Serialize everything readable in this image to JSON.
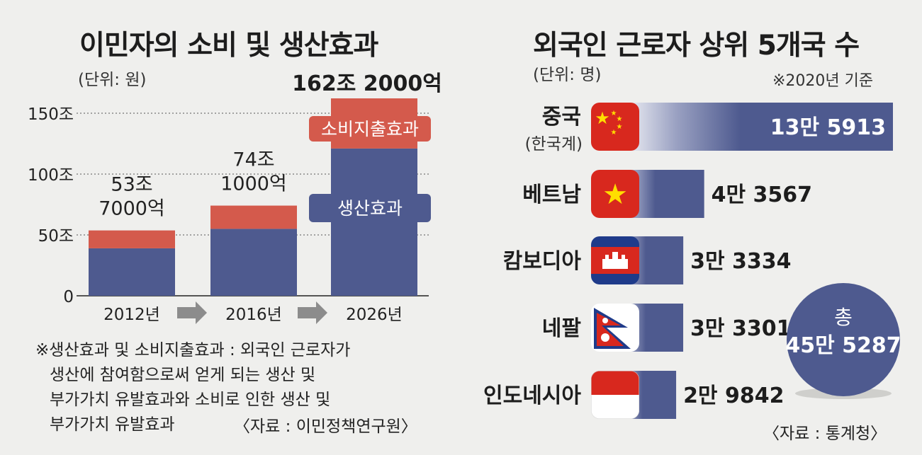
{
  "colors": {
    "background": "#efefed",
    "production": "#4e5a8f",
    "consumption": "#d45a4c",
    "text": "#1d1d1d",
    "arrow": "#8c8c8c"
  },
  "chart_data": [
    {
      "type": "bar",
      "stacked": true,
      "title": "이민자의 소비 및 생산효과",
      "unit": "(단위: 원)",
      "categories": [
        "2012년",
        "2016년",
        "2026년"
      ],
      "series": [
        {
          "name": "생산효과",
          "values": [
            39,
            55,
            121
          ]
        },
        {
          "name": "소비지출효과",
          "values": [
            14.7,
            19.1,
            41.2
          ]
        }
      ],
      "totals": [
        53.7,
        74.1,
        162.2
      ],
      "total_labels": [
        [
          "53조",
          "7000억"
        ],
        [
          "74조",
          "1000억"
        ],
        [
          "162조 2000억"
        ]
      ],
      "ylim": [
        0,
        170
      ],
      "y_ticks": [
        {
          "value": 0,
          "label": "0"
        },
        {
          "value": 50,
          "label": "50조"
        },
        {
          "value": 100,
          "label": "100조"
        },
        {
          "value": 150,
          "label": "150조"
        }
      ],
      "grid": true,
      "note_lines": [
        "※생산효과 및 소비지출효과 : 외국인 근로자가",
        "생산에 참여함으로써 얻게 되는 생산 및",
        "부가가치 유발효과와 소비로 인한 생산 및",
        "부가가치 유발효과"
      ],
      "source": "〈자료 : 이민정책연구원〉"
    },
    {
      "type": "bar",
      "orientation": "horizontal",
      "title": "외국인 근로자 상위 5개국 수",
      "unit": "(단위: 명)",
      "basis": "※2020년 기준",
      "categories": [
        "중국",
        "베트남",
        "캄보디아",
        "네팔",
        "인도네시아"
      ],
      "sublabels": [
        "(한국계)",
        "",
        "",
        "",
        ""
      ],
      "flags": [
        "china-flag-icon",
        "vietnam-flag-icon",
        "cambodia-flag-icon",
        "nepal-flag-icon",
        "indonesia-flag-icon"
      ],
      "values": [
        135913,
        43567,
        33334,
        33301,
        29842
      ],
      "value_labels": [
        "13만 5913",
        "4만 3567",
        "3만 3334",
        "3만 3301",
        "2만 9842"
      ],
      "total": {
        "label": "총",
        "value": 455287,
        "value_label": "45만 5287"
      },
      "source": "〈자료 : 통계청〉"
    }
  ]
}
